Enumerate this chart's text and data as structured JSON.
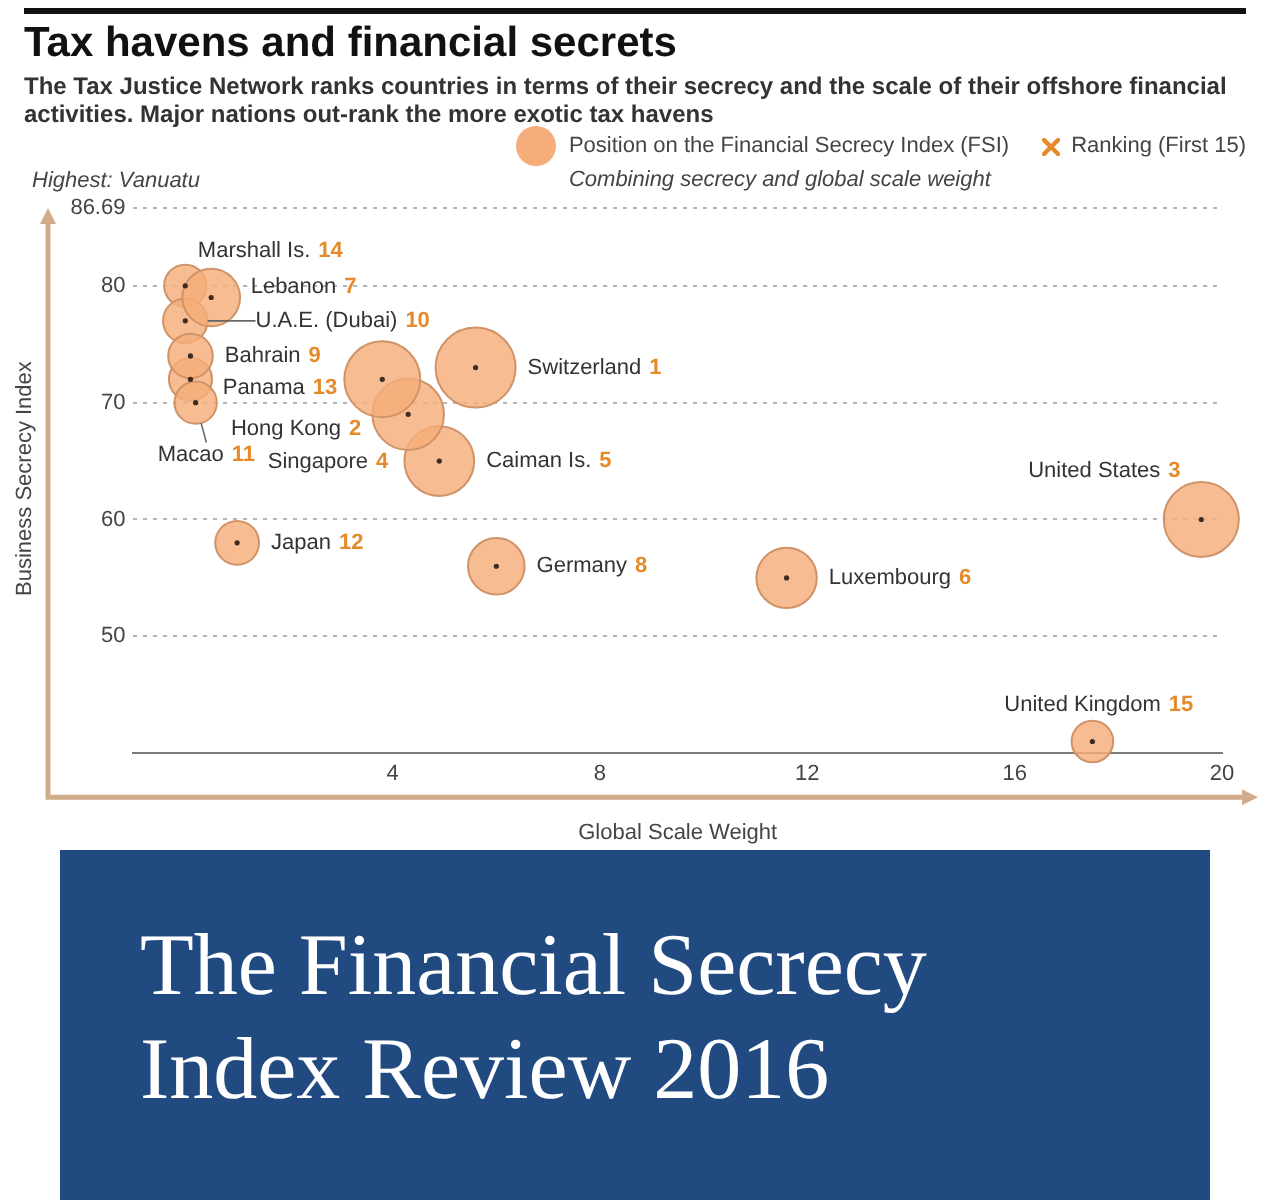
{
  "chart_data": {
    "type": "bubble",
    "title": "Tax havens and financial secrets",
    "subtitle": "The Tax Justice Network ranks countries in terms of their secrecy and the scale of their offshore financial activities. Major nations out-rank the more exotic tax havens",
    "xlabel": "Global Scale Weight",
    "ylabel": "Business Secrecy Index",
    "xlim": [
      -1,
      20
    ],
    "ylim": [
      40,
      87
    ],
    "xticks": [
      4,
      8,
      12,
      16,
      20
    ],
    "yticks": [
      50,
      60,
      70,
      80,
      86.69
    ],
    "grid": "y",
    "marker": "circle",
    "annotations": [
      "Position on the Financial Secrecy Index (FSI)",
      "Ranking (First 15)",
      "Combining secrecy and global scale weight",
      "Highest: Vanuatu",
      "The Financial Secrecy Index Review 2016",
      "1",
      "2",
      "3",
      "4",
      "5",
      "6",
      "7",
      "8",
      "9",
      "10",
      "11",
      "12",
      "13",
      "14",
      "15"
    ],
    "series": [
      {
        "name": "Switzerland",
        "color": "#f5ad7a",
        "x": [
          5.6
        ],
        "values": [
          73
        ],
        "sizes": [
          1
        ]
      },
      {
        "name": "Hong Kong",
        "color": "#f5ad7a",
        "x": [
          3.8
        ],
        "values": [
          72
        ],
        "sizes": [
          0.9
        ]
      },
      {
        "name": "United States",
        "color": "#f5ad7a",
        "x": [
          19.6
        ],
        "values": [
          60
        ],
        "sizes": [
          0.88
        ]
      },
      {
        "name": "Singapore",
        "color": "#f5ad7a",
        "x": [
          4.3
        ],
        "values": [
          69
        ],
        "sizes": [
          0.8
        ]
      },
      {
        "name": "Caiman Is.",
        "color": "#f5ad7a",
        "x": [
          4.9
        ],
        "values": [
          65
        ],
        "sizes": [
          0.76
        ]
      },
      {
        "name": "Luxembourg",
        "color": "#f5ad7a",
        "x": [
          11.6
        ],
        "values": [
          55
        ],
        "sizes": [
          0.57
        ]
      },
      {
        "name": "Lebanon",
        "color": "#f5ad7a",
        "x": [
          0.5
        ],
        "values": [
          79
        ],
        "sizes": [
          0.52
        ]
      },
      {
        "name": "Germany",
        "color": "#f5ad7a",
        "x": [
          6.0
        ],
        "values": [
          56
        ],
        "sizes": [
          0.5
        ]
      },
      {
        "name": "Bahrain",
        "color": "#f5ad7a",
        "x": [
          0.1
        ],
        "values": [
          74
        ],
        "sizes": [
          0.31
        ]
      },
      {
        "name": "U.A.E. (Dubai)",
        "color": "#f5ad7a",
        "x": [
          0.0
        ],
        "values": [
          77
        ],
        "sizes": [
          0.31
        ]
      },
      {
        "name": "Macao",
        "color": "#f5ad7a",
        "x": [
          0.2
        ],
        "values": [
          70
        ],
        "sizes": [
          0.28
        ]
      },
      {
        "name": "Japan",
        "color": "#f5ad7a",
        "x": [
          1.0
        ],
        "values": [
          58
        ],
        "sizes": [
          0.3
        ]
      },
      {
        "name": "Panama",
        "color": "#f5ad7a",
        "x": [
          0.1
        ],
        "values": [
          72
        ],
        "sizes": [
          0.29
        ]
      },
      {
        "name": "Marshall Is.",
        "color": "#f5ad7a",
        "x": [
          0.0
        ],
        "values": [
          80
        ],
        "sizes": [
          0.28
        ]
      },
      {
        "name": "United Kingdom",
        "color": "#f5ad7a",
        "x": [
          17.5
        ],
        "values": [
          41
        ],
        "sizes": [
          0.27
        ]
      }
    ]
  }
}
